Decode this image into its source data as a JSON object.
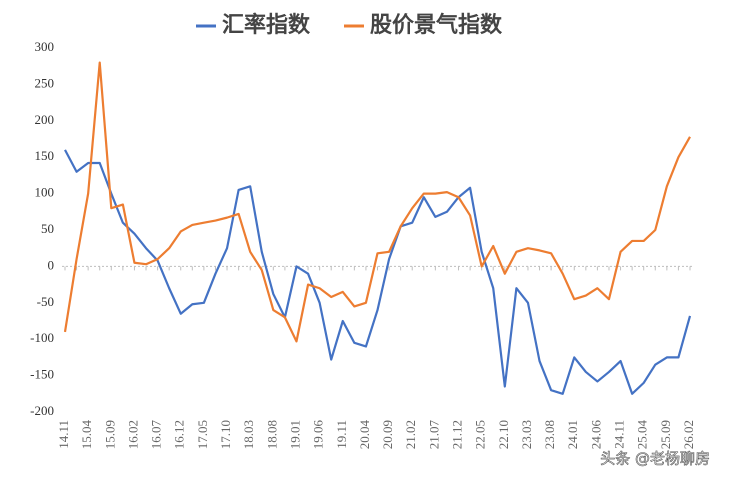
{
  "chart_data": {
    "type": "line",
    "categories": [
      "14.11",
      null,
      "15.04",
      null,
      "15.09",
      null,
      "16.02",
      null,
      "16.07",
      null,
      "16.12",
      null,
      "17.05",
      null,
      "17.10",
      null,
      "18.03",
      null,
      "18.08",
      null,
      "19.01",
      null,
      "19.06",
      null,
      "19.11",
      null,
      "20.04",
      null,
      "20.09",
      null,
      "21.02",
      null,
      "21.07",
      null,
      "21.12",
      null,
      "22.05",
      null,
      "22.10",
      null,
      "23.03",
      null,
      "23.08",
      null,
      "24.01",
      null,
      "24.06",
      null,
      "24.11",
      null,
      "25.04",
      null,
      "25.09",
      null,
      "26.02"
    ],
    "series": [
      {
        "name": "汇率指数",
        "color": "#4472c4",
        "values": [
          160,
          130,
          142,
          142,
          100,
          60,
          45,
          25,
          8,
          -30,
          -65,
          -52,
          -50,
          -10,
          25,
          105,
          110,
          20,
          -38,
          -70,
          0,
          -10,
          -50,
          -128,
          -75,
          -105,
          -110,
          -60,
          10,
          55,
          60,
          95,
          68,
          75,
          95,
          108,
          20,
          -30,
          -165,
          -30,
          -50,
          -130,
          -170,
          -175,
          -125,
          -145,
          -158,
          -145,
          -130,
          -175,
          -160,
          -135,
          -125,
          -125,
          -68
        ]
      },
      {
        "name": "股价景气指数",
        "color": "#ed7d31",
        "values": [
          -90,
          10,
          100,
          280,
          80,
          85,
          5,
          3,
          10,
          25,
          48,
          57,
          60,
          63,
          67,
          72,
          20,
          -5,
          -60,
          -70,
          -103,
          -25,
          -30,
          -42,
          -35,
          -55,
          -50,
          18,
          20,
          55,
          80,
          100,
          100,
          102,
          95,
          70,
          0,
          28,
          -10,
          20,
          25,
          22,
          18,
          -10,
          -45,
          -40,
          -30,
          -45,
          20,
          35,
          35,
          50,
          110,
          150,
          178
        ]
      }
    ],
    "ylim": [
      -200,
      300
    ],
    "yticks": [
      -200,
      -150,
      -100,
      -50,
      0,
      50,
      100,
      150,
      200,
      250,
      300
    ],
    "legend": "top",
    "watermark": "头条 @老杨聊房"
  }
}
